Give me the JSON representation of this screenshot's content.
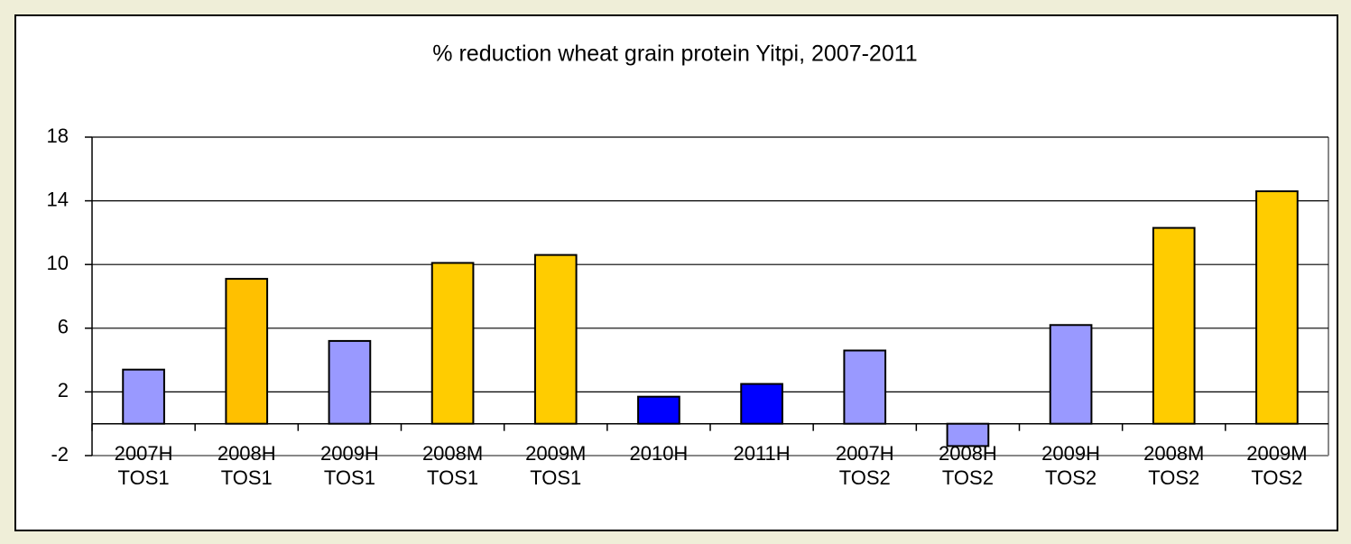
{
  "chart_data": {
    "type": "bar",
    "title": "% reduction wheat grain protein Yitpi, 2007-2011",
    "categories": [
      [
        "2007H",
        "TOS1"
      ],
      [
        "2008H",
        "TOS1"
      ],
      [
        "2009H",
        "TOS1"
      ],
      [
        "2008M",
        "TOS1"
      ],
      [
        "2009M",
        "TOS1"
      ],
      [
        "2010H"
      ],
      [
        "2011H"
      ],
      [
        "2007H",
        "TOS2"
      ],
      [
        "2008H",
        "TOS2"
      ],
      [
        "2009H",
        "TOS2"
      ],
      [
        "2008M",
        "TOS2"
      ],
      [
        "2009M",
        "TOS2"
      ]
    ],
    "values": [
      3.4,
      9.1,
      5.2,
      10.1,
      10.6,
      1.7,
      2.5,
      4.6,
      -1.4,
      6.2,
      12.3,
      14.6
    ],
    "colors": [
      "#9999ff",
      "#ffc000",
      "#9999ff",
      "#ffcc00",
      "#ffcc00",
      "#0000ff",
      "#0000ff",
      "#9999ff",
      "#9999ff",
      "#9999ff",
      "#ffcc00",
      "#ffcc00"
    ],
    "ylim": [
      -2,
      18
    ],
    "yticks": [
      -2,
      2,
      6,
      10,
      14,
      18
    ],
    "grid": true
  }
}
